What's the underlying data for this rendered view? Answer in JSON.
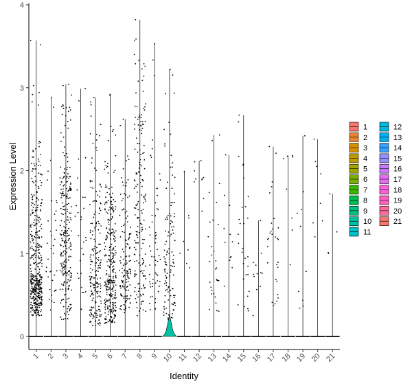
{
  "chart_data": {
    "type": "violin",
    "xlabel": "Identity",
    "ylabel": "Expression Level",
    "ylim": [
      -0.2,
      4.0
    ],
    "yticks": [
      "0",
      "1",
      "2",
      "3",
      "4"
    ],
    "ytick_values": [
      0,
      1,
      2,
      3,
      4
    ],
    "grid": false,
    "legend_position": "right",
    "categories": [
      "1",
      "2",
      "3",
      "4",
      "5",
      "6",
      "7",
      "8",
      "9",
      "10",
      "11",
      "12",
      "13",
      "14",
      "15",
      "16",
      "17",
      "18",
      "19",
      "20",
      "21"
    ],
    "colors": [
      "#F8766D",
      "#EA8331",
      "#D89000",
      "#C09B00",
      "#A3A500",
      "#7CAE00",
      "#39B600",
      "#00BB4E",
      "#00BF7D",
      "#00C1A3",
      "#00BFC4",
      "#00BAE0",
      "#00B0F6",
      "#35A2FF",
      "#9590FF",
      "#C77CFF",
      "#E76BF3",
      "#FA62DB",
      "#FF62BC",
      "#FF6A98",
      "#F8766D"
    ],
    "max_values": [
      3.57,
      2.88,
      3.04,
      2.99,
      2.88,
      2.92,
      2.62,
      3.82,
      3.53,
      3.22,
      1.99,
      2.12,
      2.43,
      2.19,
      2.67,
      1.4,
      2.29,
      2.18,
      2.42,
      2.38,
      1.72
    ],
    "point_counts": [
      420,
      38,
      260,
      30,
      210,
      300,
      140,
      180,
      60,
      120,
      8,
      10,
      30,
      12,
      30,
      12,
      30,
      8,
      10,
      8,
      4
    ],
    "min_nonzero": [
      0.25,
      0.2,
      0.2,
      0.3,
      0.12,
      0.15,
      0.25,
      0.25,
      0.3,
      0.2,
      0.4,
      1.5,
      0.2,
      0.6,
      0.3,
      0.25,
      0.35,
      0.7,
      0.25,
      1.2,
      0.8
    ],
    "typical_center": [
      0.75,
      1.0,
      1.1,
      1.3,
      0.75,
      0.75,
      0.8,
      1.6,
      1.0,
      0.9,
      1.0,
      1.8,
      0.9,
      1.2,
      1.0,
      0.8,
      1.0,
      1.6,
      1.0,
      1.6,
      1.2
    ],
    "violin_bulge_category": "10",
    "violin_bulge_height": 0.22
  }
}
